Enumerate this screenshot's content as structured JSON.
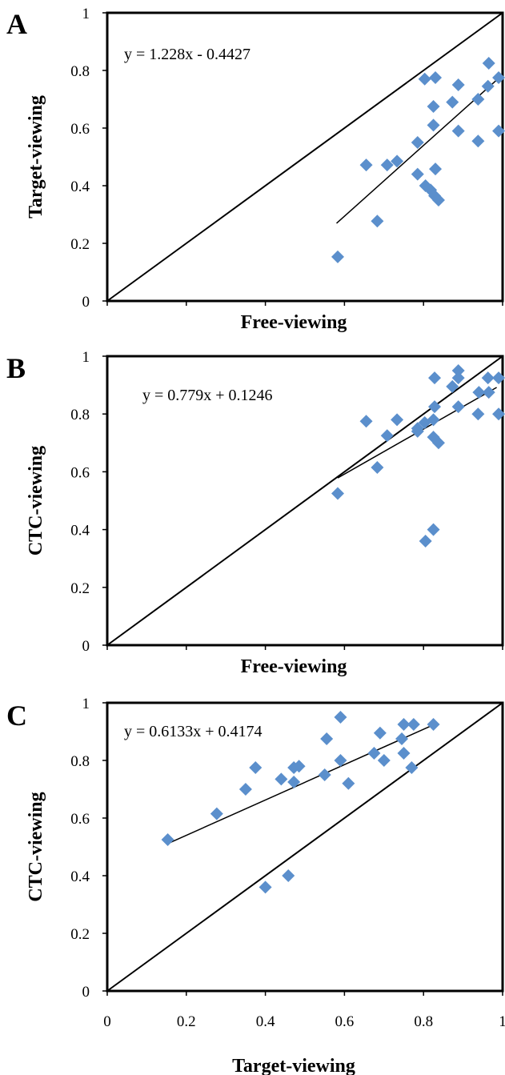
{
  "marker_color": "#5B8FCC",
  "marker_shape": "diamond",
  "chart_data": [
    {
      "type": "scatter",
      "panel_label": "A",
      "xlabel": "Free-viewing",
      "ylabel": "Target-viewing",
      "xlim": [
        0,
        1
      ],
      "ylim": [
        0,
        1
      ],
      "x_tick_labels": [],
      "y_tick_labels": [
        "0",
        "0.2",
        "0.4",
        "0.6",
        "0.8",
        "1"
      ],
      "equation": "y = 1.228x - 0.4427",
      "trendline": {
        "slope": 1.228,
        "intercept": -0.4427,
        "x_range": [
          0.58,
          0.985
        ]
      },
      "identity_line": true,
      "grid": false,
      "points": [
        [
          0.583,
          0.153
        ],
        [
          0.683,
          0.277
        ],
        [
          0.655,
          0.472
        ],
        [
          0.708,
          0.472
        ],
        [
          0.733,
          0.485
        ],
        [
          0.785,
          0.44
        ],
        [
          0.785,
          0.55
        ],
        [
          0.803,
          0.77
        ],
        [
          0.805,
          0.4
        ],
        [
          0.818,
          0.385
        ],
        [
          0.828,
          0.365
        ],
        [
          0.838,
          0.35
        ],
        [
          0.83,
          0.458
        ],
        [
          0.825,
          0.61
        ],
        [
          0.825,
          0.675
        ],
        [
          0.83,
          0.775
        ],
        [
          0.873,
          0.69
        ],
        [
          0.888,
          0.75
        ],
        [
          0.888,
          0.59
        ],
        [
          0.938,
          0.555
        ],
        [
          0.938,
          0.7
        ],
        [
          0.963,
          0.745
        ],
        [
          0.965,
          0.825
        ],
        [
          0.99,
          0.775
        ],
        [
          0.99,
          0.59
        ]
      ]
    },
    {
      "type": "scatter",
      "panel_label": "B",
      "xlabel": "Free-viewing",
      "ylabel": "CTC-viewing",
      "xlim": [
        0,
        1
      ],
      "ylim": [
        0,
        1
      ],
      "x_tick_labels": [],
      "y_tick_labels": [
        "0",
        "0.2",
        "0.4",
        "0.6",
        "0.8",
        "1"
      ],
      "equation": "y = 0.779x + 0.1246",
      "trendline": {
        "slope": 0.779,
        "intercept": 0.1246,
        "x_range": [
          0.583,
          0.985
        ]
      },
      "identity_line": true,
      "grid": false,
      "points": [
        [
          0.583,
          0.525
        ],
        [
          0.683,
          0.615
        ],
        [
          0.655,
          0.775
        ],
        [
          0.708,
          0.725
        ],
        [
          0.733,
          0.78
        ],
        [
          0.785,
          0.74
        ],
        [
          0.785,
          0.75
        ],
        [
          0.803,
          0.77
        ],
        [
          0.805,
          0.36
        ],
        [
          0.825,
          0.4
        ],
        [
          0.825,
          0.72
        ],
        [
          0.838,
          0.7
        ],
        [
          0.825,
          0.78
        ],
        [
          0.828,
          0.825
        ],
        [
          0.828,
          0.925
        ],
        [
          0.873,
          0.895
        ],
        [
          0.888,
          0.825
        ],
        [
          0.888,
          0.925
        ],
        [
          0.888,
          0.95
        ],
        [
          0.938,
          0.8
        ],
        [
          0.94,
          0.875
        ],
        [
          0.963,
          0.925
        ],
        [
          0.965,
          0.875
        ],
        [
          0.99,
          0.925
        ],
        [
          0.99,
          0.8
        ]
      ]
    },
    {
      "type": "scatter",
      "panel_label": "C",
      "xlabel": "Target-viewing",
      "ylabel": "CTC-viewing",
      "xlim": [
        0,
        1
      ],
      "ylim": [
        0,
        1
      ],
      "x_tick_labels": [
        "0",
        "0.2",
        "0.4",
        "0.6",
        "0.8",
        "1"
      ],
      "y_tick_labels": [
        "0",
        "0.2",
        "0.4",
        "0.6",
        "0.8",
        "1"
      ],
      "equation": "y = 0.6133x + 0.4174",
      "trendline": {
        "slope": 0.6133,
        "intercept": 0.4174,
        "x_range": [
          0.153,
          0.825
        ]
      },
      "identity_line": true,
      "grid": false,
      "points": [
        [
          0.153,
          0.525
        ],
        [
          0.277,
          0.615
        ],
        [
          0.35,
          0.7
        ],
        [
          0.375,
          0.775
        ],
        [
          0.44,
          0.735
        ],
        [
          0.472,
          0.725
        ],
        [
          0.472,
          0.775
        ],
        [
          0.485,
          0.78
        ],
        [
          0.4,
          0.36
        ],
        [
          0.458,
          0.4
        ],
        [
          0.55,
          0.75
        ],
        [
          0.555,
          0.875
        ],
        [
          0.59,
          0.8
        ],
        [
          0.59,
          0.95
        ],
        [
          0.61,
          0.72
        ],
        [
          0.675,
          0.825
        ],
        [
          0.69,
          0.895
        ],
        [
          0.7,
          0.8
        ],
        [
          0.745,
          0.875
        ],
        [
          0.75,
          0.825
        ],
        [
          0.75,
          0.925
        ],
        [
          0.77,
          0.775
        ],
        [
          0.775,
          0.925
        ],
        [
          0.825,
          0.925
        ]
      ]
    }
  ]
}
